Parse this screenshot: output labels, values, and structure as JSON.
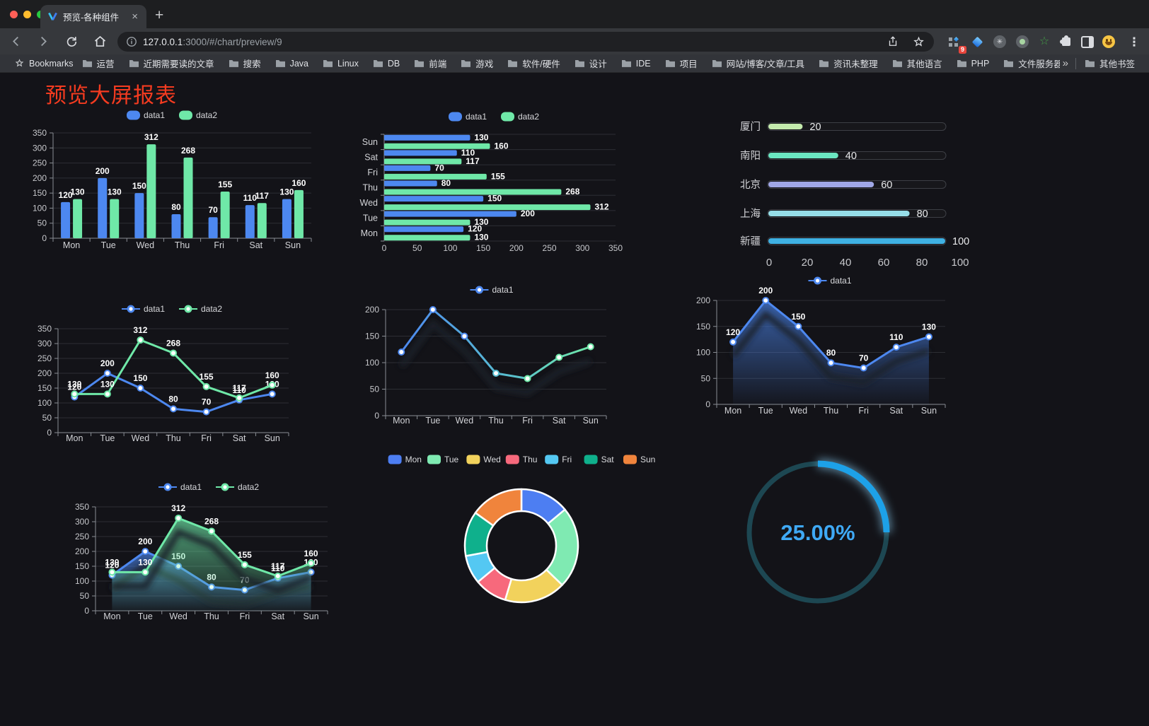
{
  "browser": {
    "tab": {
      "title": "预览-各种组件",
      "close_glyph": "×",
      "new_tab_glyph": "+"
    },
    "url": {
      "host": "127.0.0.1",
      "path": ":3000/#/chart/preview/9"
    },
    "toolbar": {
      "extension_badge": "9",
      "menu_glyph": "⋮"
    },
    "bookmarks": {
      "label": "Bookmarks",
      "folders": [
        "运营",
        "近期需要读的文章",
        "搜索",
        "Java",
        "Linux",
        "DB",
        "前端",
        "游戏",
        "软件/硬件",
        "设计",
        "IDE",
        "项目",
        "网站/博客/文章/工具",
        "资讯未整理",
        "其他语言",
        "PHP",
        "文件服务器"
      ],
      "overflow_glyph": "»",
      "other_label": "其他书签"
    }
  },
  "page": {
    "title": "预览大屏报表"
  },
  "chart_data": [
    {
      "id": "grouped-bar",
      "type": "bar",
      "legend_position": "top",
      "categories": [
        "Mon",
        "Tue",
        "Wed",
        "Thu",
        "Fri",
        "Sat",
        "Sun"
      ],
      "series": [
        {
          "name": "data1",
          "color": "#4d88f0",
          "values": [
            120,
            200,
            150,
            80,
            70,
            110,
            130
          ]
        },
        {
          "name": "data2",
          "color": "#6fe8a8",
          "values": [
            130,
            130,
            312,
            268,
            155,
            117,
            160
          ]
        }
      ],
      "ylim": [
        0,
        350
      ],
      "ystep": 50,
      "grid": true,
      "value_labels": true
    },
    {
      "id": "grouped-hbar",
      "type": "bar",
      "orientation": "horizontal",
      "legend_position": "top",
      "categories_top_to_bottom": [
        "Sun",
        "Sat",
        "Fri",
        "Thu",
        "Wed",
        "Tue",
        "Mon"
      ],
      "series": [
        {
          "name": "data1",
          "color": "#4d88f0",
          "values": [
            130,
            110,
            70,
            80,
            150,
            200,
            120
          ]
        },
        {
          "name": "data2",
          "color": "#6fe8a8",
          "values": [
            160,
            117,
            155,
            268,
            312,
            130,
            130
          ]
        }
      ],
      "xlim": [
        0,
        350
      ],
      "xstep": 50,
      "value_labels": true
    },
    {
      "id": "city-progress",
      "type": "bar",
      "subtype": "progress-list",
      "max": 100,
      "ticks": [
        0,
        20,
        40,
        60,
        80,
        100
      ],
      "items": [
        {
          "label": "厦门",
          "value": 20,
          "color": "#c4ebad"
        },
        {
          "label": "南阳",
          "value": 40,
          "color": "#6be6c1"
        },
        {
          "label": "北京",
          "value": 60,
          "color": "#a0a7e6"
        },
        {
          "label": "上海",
          "value": 80,
          "color": "#96dee8"
        },
        {
          "label": "新疆",
          "value": 100,
          "color": "#3fb1e3"
        }
      ]
    },
    {
      "id": "two-line",
      "type": "line",
      "legend_position": "top",
      "categories": [
        "Mon",
        "Tue",
        "Wed",
        "Thu",
        "Fri",
        "Sat",
        "Sun"
      ],
      "series": [
        {
          "name": "data1",
          "color": "#4d88f0",
          "values": [
            120,
            200,
            150,
            80,
            70,
            110,
            130
          ]
        },
        {
          "name": "data2",
          "color": "#6fe8a8",
          "values": [
            130,
            130,
            312,
            268,
            155,
            117,
            160
          ]
        }
      ],
      "ylim": [
        0,
        350
      ],
      "ystep": 50,
      "value_labels": true,
      "markers": true
    },
    {
      "id": "gradient-line",
      "type": "line",
      "legend_position": "top",
      "categories": [
        "Mon",
        "Tue",
        "Wed",
        "Thu",
        "Fri",
        "Sat",
        "Sun"
      ],
      "series": [
        {
          "name": "data1",
          "color": "#4d88f0",
          "gradient": [
            "#4d88f0",
            "#6fe8a8"
          ],
          "values": [
            120,
            200,
            150,
            80,
            70,
            110,
            130
          ],
          "shadow": true
        }
      ],
      "ylim": [
        0,
        200
      ],
      "ystep": 50,
      "value_labels": false,
      "markers": true
    },
    {
      "id": "area-line",
      "type": "area",
      "legend_position": "top",
      "categories": [
        "Mon",
        "Tue",
        "Wed",
        "Thu",
        "Fri",
        "Sat",
        "Sun"
      ],
      "series": [
        {
          "name": "data1",
          "color": "#4d88f0",
          "area": true,
          "shadow": true,
          "values": [
            120,
            200,
            150,
            80,
            70,
            110,
            130
          ]
        }
      ],
      "ylim": [
        0,
        200
      ],
      "ystep": 50,
      "value_labels": true,
      "markers": true
    },
    {
      "id": "two-area-line",
      "type": "area",
      "legend_position": "top",
      "categories": [
        "Mon",
        "Tue",
        "Wed",
        "Thu",
        "Fri",
        "Sat",
        "Sun"
      ],
      "series": [
        {
          "name": "data1",
          "color": "#4d88f0",
          "area": true,
          "shadow": true,
          "values": [
            120,
            200,
            150,
            80,
            70,
            110,
            130
          ]
        },
        {
          "name": "data2",
          "color": "#6fe8a8",
          "area": true,
          "shadow": true,
          "values": [
            130,
            130,
            312,
            268,
            155,
            117,
            160
          ]
        }
      ],
      "ylim": [
        0,
        350
      ],
      "ystep": 50,
      "value_labels": true,
      "markers": true
    },
    {
      "id": "weekday-donut",
      "type": "pie",
      "donut": true,
      "legend_position": "top",
      "categories": [
        "Mon",
        "Tue",
        "Wed",
        "Thu",
        "Fri",
        "Sat",
        "Sun"
      ],
      "values": [
        120,
        200,
        150,
        80,
        70,
        110,
        130
      ],
      "colors": [
        "#4d7ef2",
        "#7feab2",
        "#f2d25c",
        "#f7697c",
        "#54c8f2",
        "#0fb08c",
        "#f0843c"
      ]
    },
    {
      "id": "gauge-progress",
      "type": "gauge",
      "value": 25,
      "max": 100,
      "display": "25.00%",
      "arc_color": "#1da1e8",
      "track_color": "#1d4752",
      "text_color": "#3fa9f5"
    }
  ]
}
